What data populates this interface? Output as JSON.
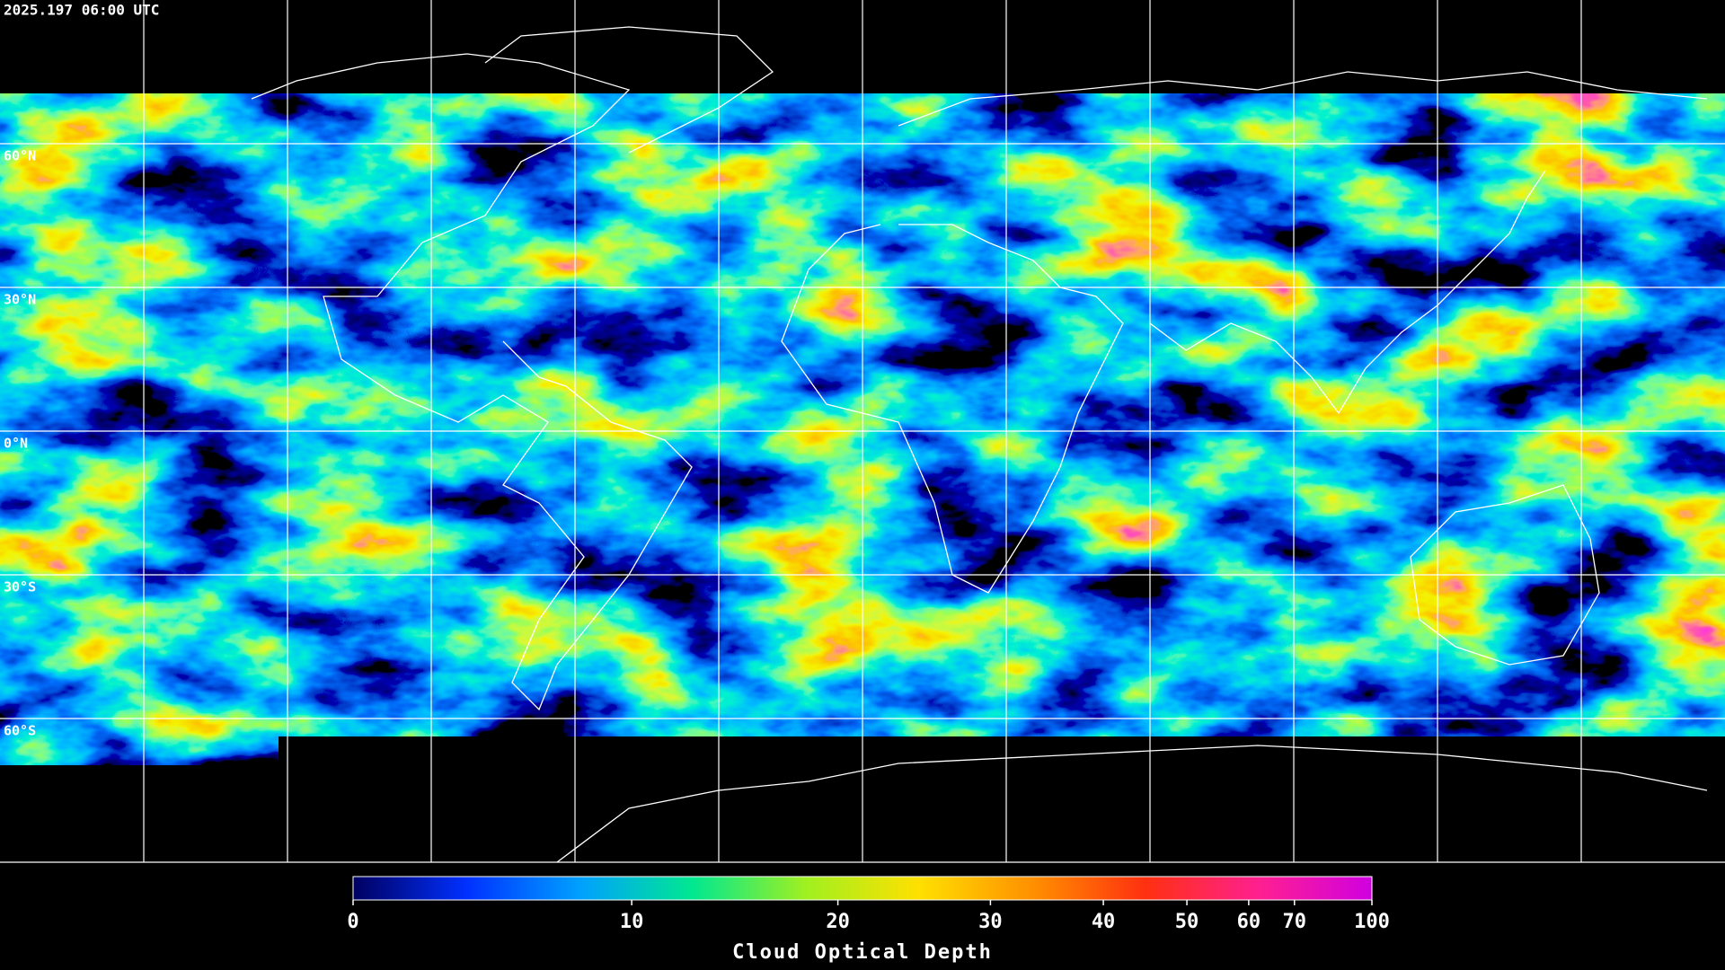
{
  "chart_data": {
    "type": "map",
    "title": "2025.197 06:00 UTC",
    "ylim": [
      90,
      -90
    ],
    "yticks": [
      {
        "value": 60,
        "label": "60°N"
      },
      {
        "value": 30,
        "label": "30°N"
      },
      {
        "value": 0,
        "label": "0°N"
      },
      {
        "value": -30,
        "label": "30°S"
      },
      {
        "value": -60,
        "label": "60°S"
      }
    ],
    "grid": true,
    "colorbar": {
      "label": "Cloud Optical Depth",
      "lim": [
        0,
        100
      ],
      "ticks": [
        0,
        10,
        20,
        30,
        40,
        50,
        60,
        70,
        100
      ],
      "colors": [
        "#000060",
        "#0030ff",
        "#00a0ff",
        "#00e890",
        "#a0f020",
        "#ffe000",
        "#ff9000",
        "#ff3010",
        "#ff2090",
        "#d000e0"
      ]
    }
  }
}
